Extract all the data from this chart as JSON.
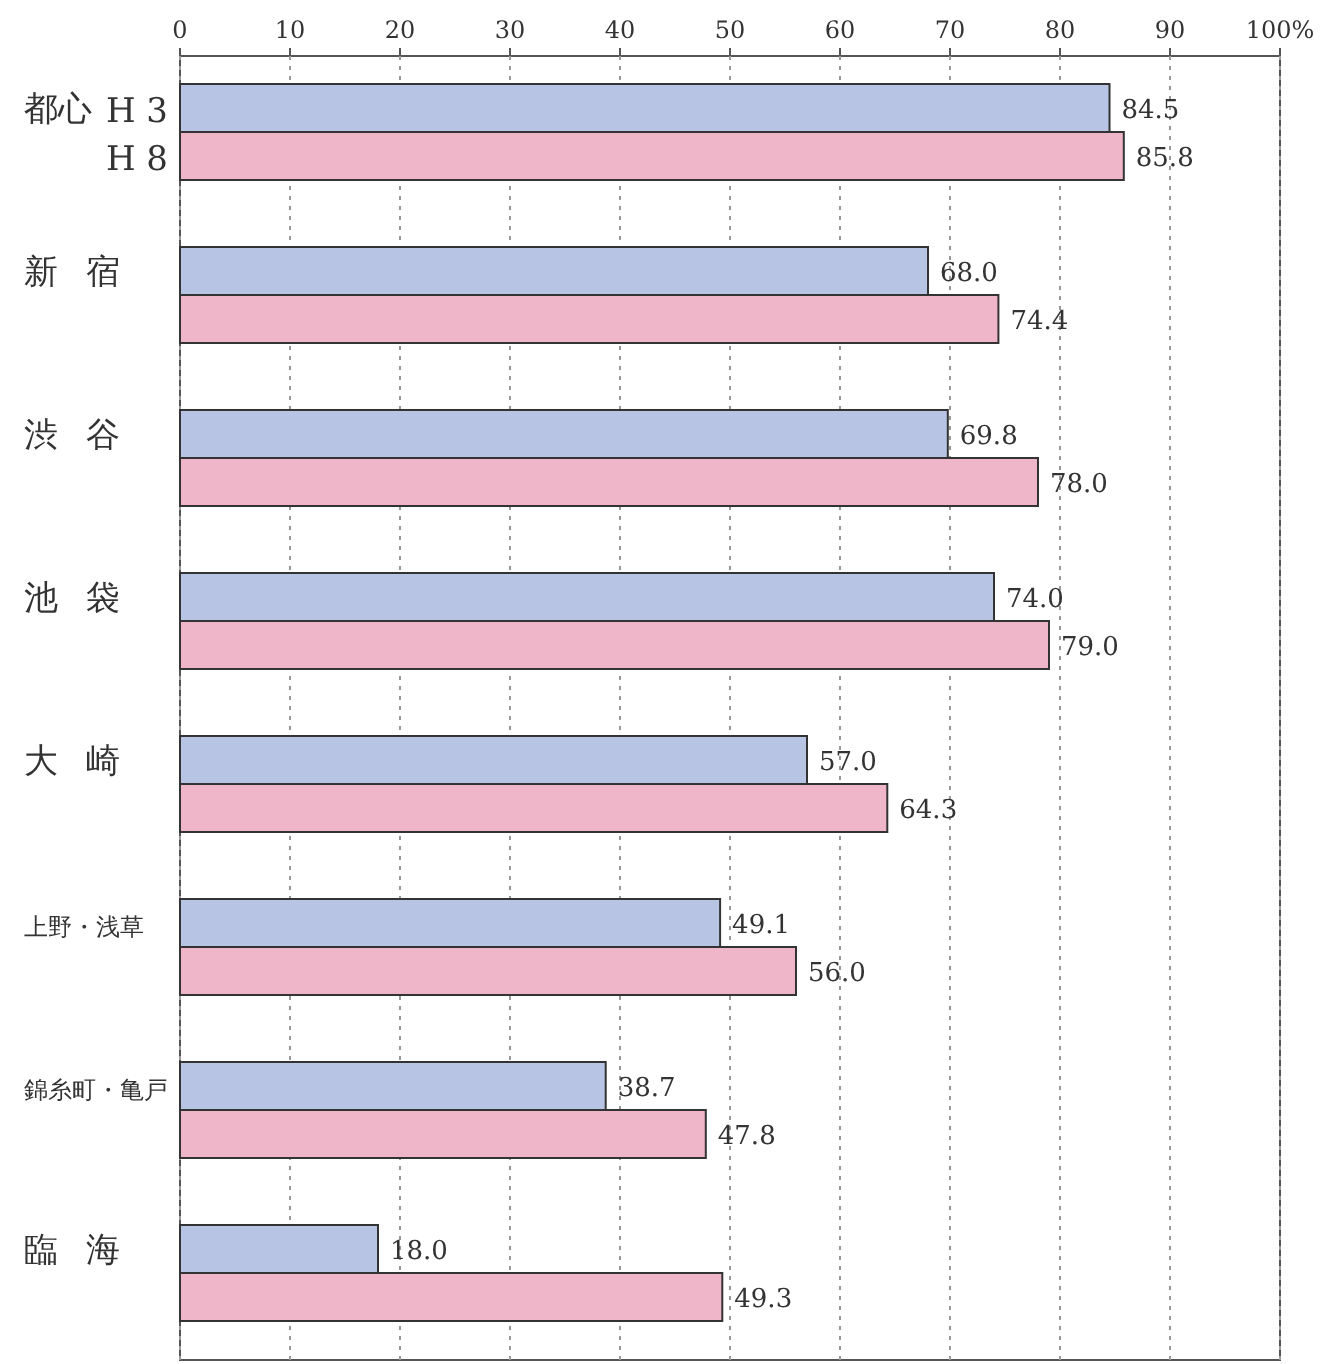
{
  "chart_data": {
    "type": "bar",
    "orientation": "horizontal",
    "categories": [
      "都心",
      "新宿",
      "渋谷",
      "池袋",
      "大崎",
      "上野・浅草",
      "錦糸町・亀戸",
      "臨海"
    ],
    "series": [
      {
        "name": "H 3",
        "color": "#b7c4e4",
        "values": [
          84.5,
          68.0,
          69.8,
          74.0,
          57.0,
          49.1,
          38.7,
          18.0
        ],
        "value_labels": [
          "84.5",
          "68.0",
          "69.8",
          "74.0",
          "57.0",
          "49.1",
          "38.7",
          "18.0"
        ]
      },
      {
        "name": "H 8",
        "color": "#efb6c9",
        "values": [
          85.8,
          74.4,
          78.0,
          79.0,
          64.3,
          56.0,
          47.8,
          49.3
        ],
        "value_labels": [
          "85.8",
          "74.4",
          "78.0",
          "79.0",
          "64.3",
          "56.0",
          "47.8",
          "49.3"
        ]
      }
    ],
    "xlim": [
      0,
      100
    ],
    "xticks": [
      0,
      10,
      20,
      30,
      40,
      50,
      60,
      70,
      80,
      90,
      {
        "value": 100,
        "label": "100%"
      }
    ],
    "grid": "x",
    "legend": false
  }
}
